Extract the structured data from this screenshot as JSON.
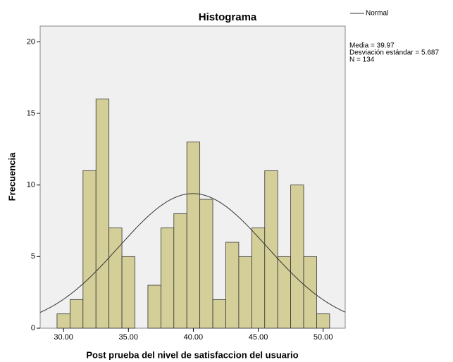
{
  "chart_data": {
    "type": "histogram",
    "title": "Histograma",
    "x_label": "Post prueba del nivel de satisfaccion del usuario",
    "y_label": "Frecuencia",
    "bins": [
      29.5,
      30.5,
      31.5,
      32.5,
      33.5,
      34.5,
      35.5,
      36.5,
      37.5,
      38.5,
      39.5,
      40.5,
      41.5,
      42.5,
      43.5,
      44.5,
      45.5,
      46.5,
      47.5,
      48.5,
      49.5,
      50.5
    ],
    "counts": [
      1,
      2,
      11,
      16,
      7,
      5,
      0,
      3,
      7,
      8,
      13,
      9,
      2,
      6,
      5,
      7,
      11,
      5,
      10,
      5,
      1
    ],
    "color": "#d4cf99",
    "edge_color": "#333333",
    "xlim": [
      28.2,
      51.7
    ],
    "ylim": [
      0,
      21.1
    ],
    "xticks": [
      {
        "value": 30,
        "label": "30.00"
      },
      {
        "value": 35,
        "label": "35.00"
      },
      {
        "value": 40,
        "label": "40.00"
      },
      {
        "value": 45,
        "label": "45.00"
      },
      {
        "value": 50,
        "label": "50.00"
      }
    ],
    "yticks": [
      0,
      5,
      10,
      15,
      20
    ],
    "normal": {
      "name": "Normal",
      "mean": 39.97,
      "sd": 5.687,
      "n": 134,
      "color": "#333333",
      "labels": [
        "Media = 39.97",
        "Desviación estándar = 5.687",
        "N = 134"
      ]
    },
    "legend": "top-right"
  }
}
